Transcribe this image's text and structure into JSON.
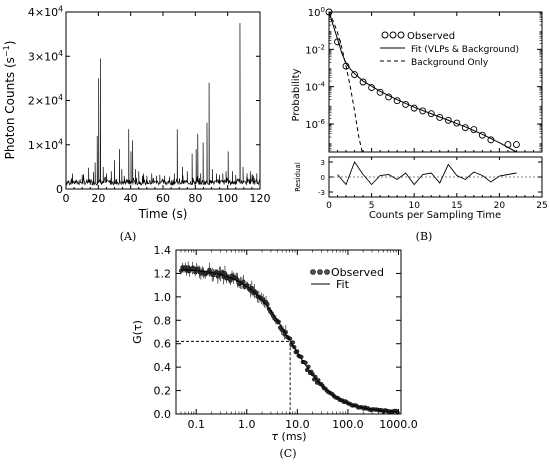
{
  "panels": {
    "A": {
      "label": "(A)",
      "xlabel": "Time (s)",
      "ylabel_main": "Photon Counts (s",
      "ylabel_exp": "−1",
      "ylabel_end": ")",
      "xlim": [
        0,
        120
      ],
      "ylim": [
        0,
        40000
      ],
      "xticks": [
        {
          "v": 0,
          "t": "0"
        },
        {
          "v": 20,
          "t": "20"
        },
        {
          "v": 40,
          "t": "40"
        },
        {
          "v": 60,
          "t": "60"
        },
        {
          "v": 80,
          "t": "80"
        },
        {
          "v": 100,
          "t": "100"
        },
        {
          "v": 120,
          "t": "120"
        }
      ],
      "yticks": [
        {
          "v": 0,
          "m": "0",
          "e": ""
        },
        {
          "v": 10000,
          "m": "1×10",
          "e": "4"
        },
        {
          "v": 20000,
          "m": "2×10",
          "e": "4"
        },
        {
          "v": 30000,
          "m": "3×10",
          "e": "4"
        },
        {
          "v": 40000,
          "m": "4×10",
          "e": "4"
        }
      ],
      "trace": {
        "baseline": 1500,
        "spikes": [
          [
            4,
            3500
          ],
          [
            10,
            3200
          ],
          [
            14,
            4800
          ],
          [
            17,
            3800
          ],
          [
            18,
            6000
          ],
          [
            19.3,
            12000
          ],
          [
            20.2,
            25000
          ],
          [
            21.3,
            29500
          ],
          [
            23,
            5000
          ],
          [
            25,
            3500
          ],
          [
            28,
            4000
          ],
          [
            30,
            6500
          ],
          [
            33,
            9000
          ],
          [
            34.5,
            4500
          ],
          [
            36,
            3000
          ],
          [
            38.8,
            13500
          ],
          [
            40.2,
            8500
          ],
          [
            41.2,
            11000
          ],
          [
            43,
            4500
          ],
          [
            45,
            4000
          ],
          [
            48,
            3500
          ],
          [
            50,
            3000
          ],
          [
            53,
            3500
          ],
          [
            56,
            3000
          ],
          [
            58,
            3200
          ],
          [
            61,
            3000
          ],
          [
            64,
            2800
          ],
          [
            67,
            3500
          ],
          [
            68.8,
            13500
          ],
          [
            72,
            5000
          ],
          [
            75,
            4000
          ],
          [
            78,
            8000
          ],
          [
            80.5,
            9000
          ],
          [
            81.5,
            12500
          ],
          [
            83.3,
            3500
          ],
          [
            84.8,
            10500
          ],
          [
            87.2,
            15000
          ],
          [
            88.5,
            24000
          ],
          [
            90.5,
            4500
          ],
          [
            93,
            3500
          ],
          [
            95,
            3200
          ],
          [
            97,
            3500
          ],
          [
            99,
            4000
          ],
          [
            100.3,
            8500
          ],
          [
            103,
            4000
          ],
          [
            105,
            3200
          ],
          [
            107.6,
            37500
          ],
          [
            109.5,
            5000
          ],
          [
            112,
            3500
          ],
          [
            114,
            4000
          ],
          [
            116,
            3000
          ],
          [
            118,
            3500
          ]
        ]
      }
    },
    "B": {
      "label": "(B)",
      "xlabel": "Counts per Sampling Time",
      "ylabel": "Probability",
      "ylabel_residual": "Residual",
      "xlim": [
        0,
        25
      ],
      "xticks": [
        {
          "v": 0,
          "t": "0"
        },
        {
          "v": 5,
          "t": "5"
        },
        {
          "v": 10,
          "t": "10"
        },
        {
          "v": 15,
          "t": "15"
        },
        {
          "v": 20,
          "t": "20"
        },
        {
          "v": 25,
          "t": "25"
        }
      ],
      "yscale": "log",
      "ylim_exp": [
        -7.5,
        0
      ],
      "yticks": [
        {
          "v": 0,
          "m": "10",
          "e": "0"
        },
        {
          "v": -2,
          "m": "10",
          "e": "-2"
        },
        {
          "v": -4,
          "m": "10",
          "e": "-4"
        },
        {
          "v": -6,
          "m": "10",
          "e": "-6"
        }
      ],
      "residual_ylim": [
        -4,
        4
      ],
      "residual_yticks": [
        {
          "v": 3,
          "t": "3"
        },
        {
          "v": 0,
          "t": "0"
        },
        {
          "v": -3,
          "t": "-3"
        }
      ],
      "legend": [
        {
          "style": "marker",
          "label": "Observed"
        },
        {
          "style": "solid",
          "label": "Fit (VLPs & Background)"
        },
        {
          "style": "dashed",
          "label": "Background Only"
        }
      ],
      "observed": [
        [
          0,
          0
        ],
        [
          1,
          -1.6
        ],
        [
          2,
          -2.9
        ],
        [
          3,
          -3.35
        ],
        [
          4,
          -3.75
        ],
        [
          5,
          -4.05
        ],
        [
          6,
          -4.3
        ],
        [
          7,
          -4.55
        ],
        [
          8,
          -4.75
        ],
        [
          9,
          -4.95
        ],
        [
          10,
          -5.15
        ],
        [
          11,
          -5.3
        ],
        [
          12,
          -5.45
        ],
        [
          13,
          -5.65
        ],
        [
          14,
          -5.8
        ],
        [
          15,
          -5.95
        ],
        [
          16,
          -6.2
        ],
        [
          17,
          -6.3
        ],
        [
          18,
          -6.6
        ],
        [
          19,
          -6.85
        ],
        [
          21,
          -7.1
        ],
        [
          22,
          -7.1
        ]
      ],
      "fit": [
        [
          0,
          0
        ],
        [
          1,
          -1.45
        ],
        [
          1.5,
          -2.2
        ],
        [
          2,
          -2.75
        ],
        [
          2.5,
          -3.05
        ],
        [
          3,
          -3.3
        ],
        [
          4,
          -3.7
        ],
        [
          6,
          -4.25
        ],
        [
          8,
          -4.7
        ],
        [
          10,
          -5.1
        ],
        [
          12,
          -5.45
        ],
        [
          14,
          -5.8
        ],
        [
          16,
          -6.15
        ],
        [
          18,
          -6.55
        ],
        [
          20,
          -7.0
        ],
        [
          22,
          -7.6
        ]
      ],
      "background": [
        [
          0,
          0
        ],
        [
          0.5,
          -0.5
        ],
        [
          1,
          -1.1
        ],
        [
          1.5,
          -1.9
        ],
        [
          2,
          -2.9
        ],
        [
          2.5,
          -4.0
        ],
        [
          3,
          -5.3
        ],
        [
          3.5,
          -6.7
        ],
        [
          3.9,
          -7.5
        ]
      ],
      "residuals": [
        [
          1,
          0.5
        ],
        [
          2,
          -1.5
        ],
        [
          3,
          3
        ],
        [
          4,
          0.5
        ],
        [
          5,
          -1.5
        ],
        [
          6,
          0.3
        ],
        [
          7,
          0.5
        ],
        [
          8,
          -0.5
        ],
        [
          9,
          0.8
        ],
        [
          10,
          -1.5
        ],
        [
          11,
          0.5
        ],
        [
          12,
          0.8
        ],
        [
          13,
          -1.2
        ],
        [
          14,
          2.5
        ],
        [
          15,
          0.3
        ],
        [
          16,
          -0.5
        ],
        [
          17,
          1
        ],
        [
          18,
          0.3
        ],
        [
          19,
          -1
        ],
        [
          20,
          0.2
        ],
        [
          21,
          0.5
        ],
        [
          22,
          0.8
        ]
      ]
    },
    "C": {
      "label": "(C)",
      "xlabel_sym": "τ",
      "xlabel_unit": " (ms)",
      "ylabel": "G(τ)",
      "xscale": "log",
      "xlim_log": [
        -1.4,
        3.05
      ],
      "ylim": [
        0,
        1.4
      ],
      "xticks": [
        {
          "v": -1,
          "t": "0.1"
        },
        {
          "v": 0,
          "t": "1.0"
        },
        {
          "v": 1,
          "t": "10.0"
        },
        {
          "v": 2,
          "t": "100.0"
        },
        {
          "v": 3,
          "t": "1000.0"
        }
      ],
      "yticks": [
        {
          "v": 0,
          "t": "0.0"
        },
        {
          "v": 0.2,
          "t": "0.2"
        },
        {
          "v": 0.4,
          "t": "0.4"
        },
        {
          "v": 0.6,
          "t": "0.6"
        },
        {
          "v": 0.8,
          "t": "0.8"
        },
        {
          "v": 1.0,
          "t": "1.0"
        },
        {
          "v": 1.2,
          "t": "1.2"
        },
        {
          "v": 1.4,
          "t": "1.4"
        }
      ],
      "legend": [
        {
          "style": "marker",
          "label": "Observed"
        },
        {
          "style": "solid",
          "label": "Fit"
        }
      ],
      "fit_params": {
        "G0": 1.24,
        "tau_d": 7.2,
        "floor": 0.01
      },
      "reference_point": {
        "tau": 7.2,
        "g": 0.62
      }
    }
  }
}
